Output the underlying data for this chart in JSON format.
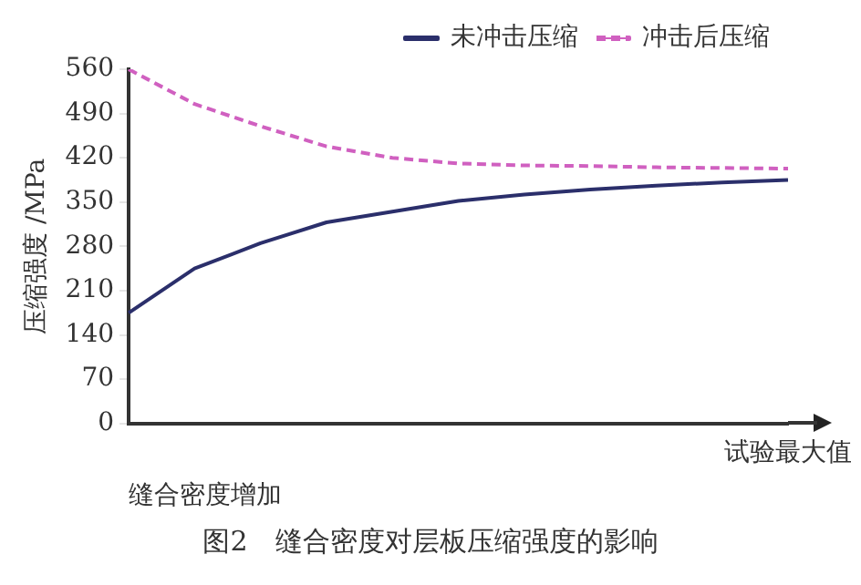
{
  "chart_data": {
    "type": "line",
    "xlabel": "缝合密度增加",
    "ylabel": "压缩强度 /MPa",
    "categories": [
      null,
      null,
      null,
      null,
      null,
      null,
      null,
      null,
      null,
      null,
      "试验最大值"
    ],
    "series": [
      {
        "name": "未冲击压缩",
        "color": "#2b2f6b",
        "line_style": "solid",
        "values": [
          175,
          245,
          285,
          318,
          335,
          352,
          362,
          370,
          376,
          381,
          385
        ]
      },
      {
        "name": "冲击后压缩",
        "color": "#d060c0",
        "line_style": "dashed",
        "values": [
          560,
          505,
          470,
          438,
          420,
          411,
          408,
          407,
          405,
          404,
          403
        ]
      }
    ],
    "ylim": [
      0,
      560
    ],
    "yticks": [
      0,
      70,
      140,
      210,
      280,
      350,
      420,
      490,
      560
    ],
    "grid": false,
    "legend": "top right",
    "marker": "none",
    "annotations": [
      "图2　缝合密度对层板压缩强度的影响"
    ]
  }
}
